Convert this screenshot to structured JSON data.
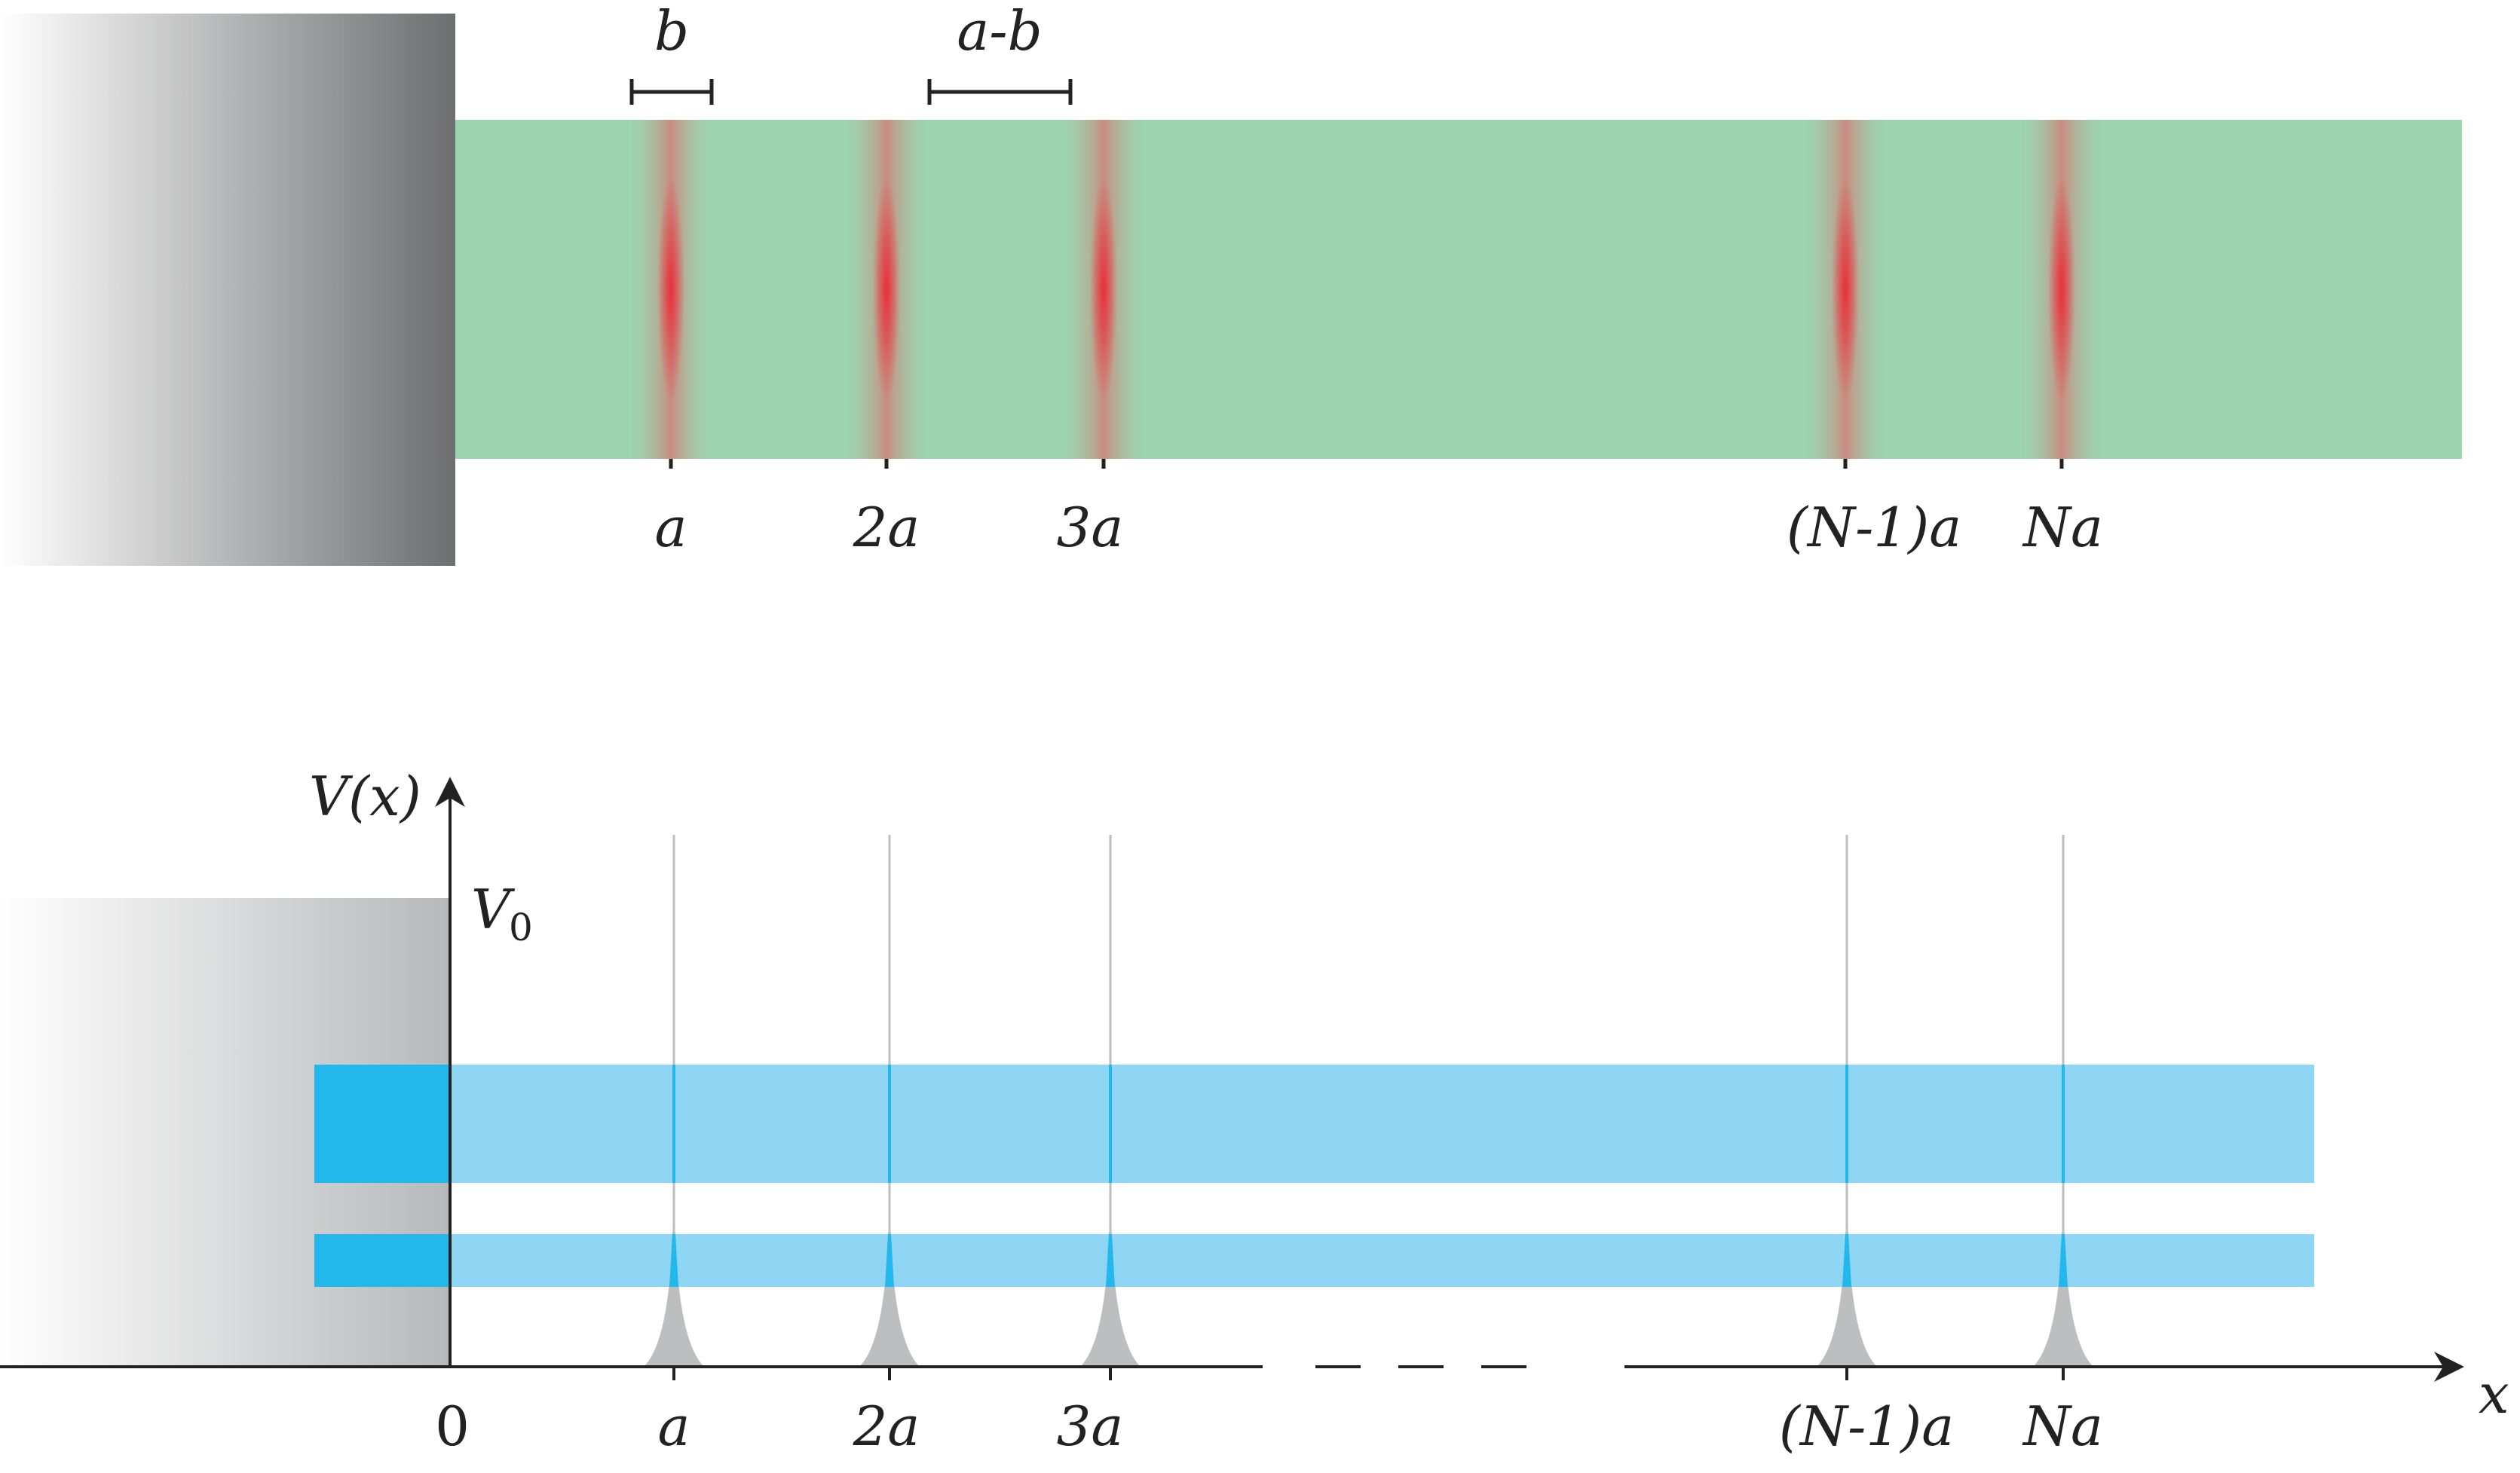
{
  "top_panel": {
    "dim_b": "b",
    "dim_ab": "a-b",
    "site_labels": [
      "a",
      "2a",
      "3a",
      "(N-1)a",
      "Na"
    ]
  },
  "bottom_panel": {
    "y_axis_label": "V(x)",
    "level_label": "V",
    "level_subscript": "0",
    "x_axis_label": "x",
    "origin_label": "0",
    "site_labels": [
      "a",
      "2a",
      "3a",
      "(N-1)a",
      "Na"
    ]
  },
  "colors": {
    "wire": "#9dd4b0",
    "site_core": "#e8313b",
    "band_light": "#8ed6f4",
    "band_dark": "#22b8ec",
    "peak": "#bdbec0",
    "metal_dark": "#6d6e70",
    "axis": "#222222"
  }
}
